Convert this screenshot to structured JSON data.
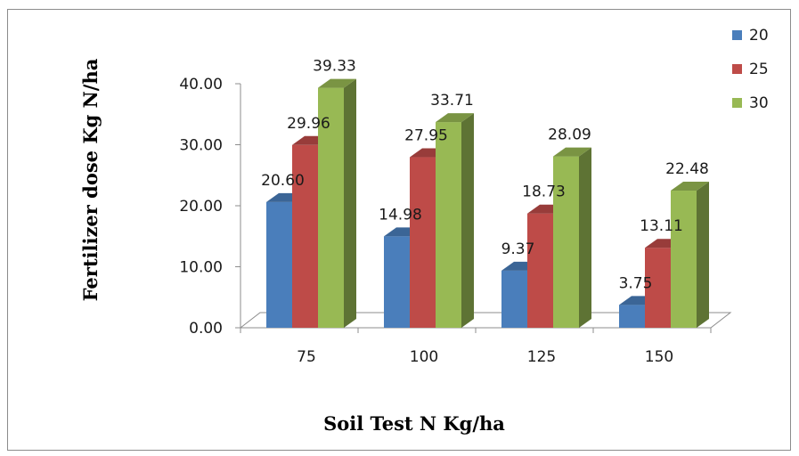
{
  "chart_data": {
    "type": "bar",
    "style": "3d-clustered-column",
    "title": "",
    "xlabel": "Soil Test N Kg/ha",
    "ylabel": "Fertilizer dose Kg N/ha",
    "categories": [
      "75",
      "100",
      "125",
      "150"
    ],
    "series": [
      {
        "name": "20",
        "color": "#4a7ebb",
        "values": [
          20.6,
          14.98,
          9.37,
          3.75
        ],
        "labels": [
          "20.60",
          "14.98",
          "9.37",
          "3.75"
        ]
      },
      {
        "name": "25",
        "color": "#be4b48",
        "values": [
          29.96,
          27.95,
          18.73,
          13.11
        ],
        "labels": [
          "29.96",
          "27.95",
          "18.73",
          "13.11"
        ]
      },
      {
        "name": "30",
        "color": "#98b954",
        "values": [
          39.33,
          33.71,
          28.09,
          22.48
        ],
        "labels": [
          "39.33",
          "33.71",
          "28.09",
          "22.48"
        ]
      }
    ],
    "ylim": [
      0,
      40
    ],
    "yticks": [
      "0.00",
      "10.00",
      "20.00",
      "30.00",
      "40.00"
    ],
    "grid": false,
    "legend_position": "top-right"
  }
}
